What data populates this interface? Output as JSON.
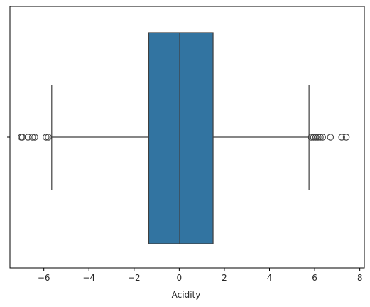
{
  "chart_data": {
    "type": "box",
    "orientation": "horizontal",
    "xlabel": "Acidity",
    "ylabel": "",
    "xlim": [
      -7.5,
      8.2
    ],
    "xticks": [
      -6,
      -4,
      -2,
      0,
      2,
      4,
      6,
      8
    ],
    "xtick_labels": [
      "−6",
      "−4",
      "−2",
      "0",
      "2",
      "4",
      "6",
      "8"
    ],
    "box": {
      "q1": -1.35,
      "median": 0.02,
      "q3": 1.5,
      "whisker_low": -5.65,
      "whisker_high": 5.75
    },
    "outliers": [
      -7.0,
      -6.95,
      -6.7,
      -6.5,
      -6.4,
      -5.9,
      -5.8,
      5.85,
      5.95,
      6.05,
      6.15,
      6.25,
      6.35,
      6.7,
      7.2,
      7.4
    ],
    "grid": false,
    "colors": {
      "box_fill": "#3274a1",
      "lines": "#3f3f3f",
      "axis": "#000000"
    }
  }
}
